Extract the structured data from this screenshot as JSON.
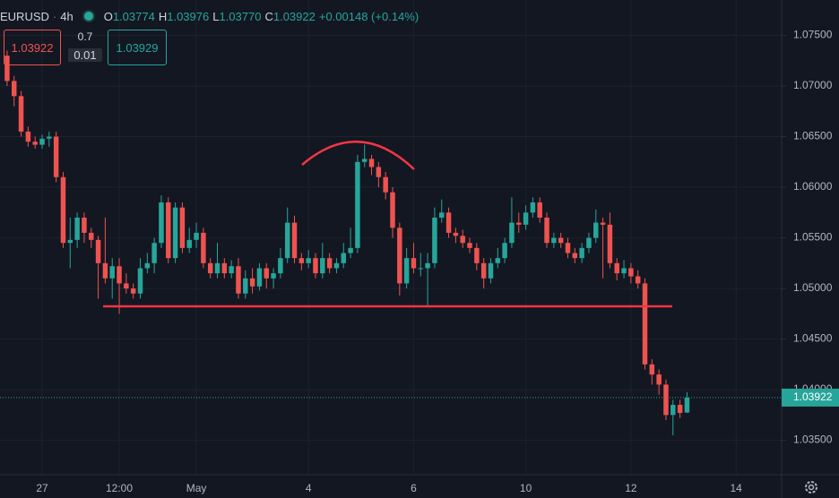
{
  "header": {
    "symbol": "EURUSD",
    "interval": "4h",
    "open_label": "O",
    "open": "1.03774",
    "high_label": "H",
    "high": "1.03976",
    "low_label": "L",
    "low": "1.03770",
    "close_label": "C",
    "close": "1.03922",
    "change": "+0.00148 (+0.14%)",
    "sell": "1.03922",
    "spread": "0.7",
    "quantity": "0.01",
    "buy": "1.03929"
  },
  "chart_data": {
    "type": "candlestick",
    "up_color": "#26a69a",
    "down_color": "#ef5350",
    "grid": true,
    "ylim": [
      1.0316,
      1.0785
    ],
    "yticks": [
      {
        "value": 1.035,
        "label": "1.03500"
      },
      {
        "value": 1.04,
        "label": "1.04000"
      },
      {
        "value": 1.045,
        "label": "1.04500"
      },
      {
        "value": 1.05,
        "label": "1.05000"
      },
      {
        "value": 1.055,
        "label": "1.05500"
      },
      {
        "value": 1.06,
        "label": "1.06000"
      },
      {
        "value": 1.065,
        "label": "1.06500"
      },
      {
        "value": 1.07,
        "label": "1.07000"
      },
      {
        "value": 1.075,
        "label": "1.07500"
      }
    ],
    "current_price": {
      "value": 1.03922,
      "label": "1.03922"
    },
    "categories": [
      null,
      null,
      null,
      null,
      null,
      "27",
      null,
      null,
      null,
      null,
      null,
      null,
      null,
      null,
      null,
      null,
      "12:00",
      null,
      null,
      null,
      null,
      null,
      null,
      null,
      null,
      null,
      null,
      "May",
      null,
      null,
      null,
      null,
      null,
      null,
      null,
      null,
      null,
      null,
      null,
      null,
      null,
      null,
      null,
      "4",
      null,
      null,
      null,
      null,
      null,
      null,
      null,
      null,
      null,
      null,
      null,
      null,
      null,
      null,
      "6",
      null,
      null,
      null,
      null,
      null,
      null,
      null,
      null,
      null,
      null,
      null,
      null,
      null,
      null,
      null,
      "10",
      null,
      null,
      null,
      null,
      null,
      null,
      null,
      null,
      null,
      null,
      null,
      null,
      null,
      null,
      "12",
      null,
      null,
      null,
      null,
      null,
      null,
      null,
      null,
      null,
      null,
      null,
      null,
      null,
      null,
      "14",
      null,
      null,
      null,
      null,
      null,
      null
    ],
    "open": [
      1.073,
      1.0705,
      1.069,
      1.0655,
      1.0645,
      1.0642,
      1.0648,
      1.065,
      1.061,
      1.0545,
      1.0548,
      1.057,
      1.0555,
      1.0548,
      1.0525,
      1.051,
      1.0522,
      1.0505,
      1.05,
      1.0495,
      1.052,
      1.0525,
      1.0545,
      1.0585,
      1.053,
      1.058,
      1.054,
      1.0548,
      1.0555,
      1.0525,
      1.0515,
      1.0525,
      1.0515,
      1.0522,
      1.0495,
      1.051,
      1.0502,
      1.052,
      1.051,
      1.0515,
      1.053,
      1.0565,
      1.053,
      1.0525,
      1.053,
      1.0515,
      1.053,
      1.052,
      1.0525,
      1.0535,
      1.054,
      1.0625,
      1.0628,
      1.062,
      1.061,
      1.0595,
      1.056,
      1.0505,
      1.053,
      1.052,
      1.052,
      1.0525,
      1.057,
      1.0575,
      1.0555,
      1.0552,
      1.0545,
      1.054,
      1.0525,
      1.051,
      1.0525,
      1.053,
      1.0545,
      1.0565,
      1.0563,
      1.0575,
      1.0585,
      1.057,
      1.0545,
      1.055,
      1.0545,
      1.0535,
      1.053,
      1.054,
      1.055,
      1.0565,
      1.0563,
      1.0525,
      1.0515,
      1.052,
      1.0512,
      1.0505,
      1.0425,
      1.0415,
      1.0405,
      1.0375,
      1.0385,
      1.03774,
      null,
      null,
      null,
      null,
      null,
      null,
      null,
      null,
      null,
      null,
      null,
      null,
      null
    ],
    "high": [
      1.0735,
      1.071,
      1.0695,
      1.066,
      1.065,
      1.0652,
      1.0655,
      1.0655,
      1.0615,
      1.057,
      1.0575,
      1.0575,
      1.056,
      1.0552,
      1.057,
      1.053,
      1.053,
      1.0515,
      1.0505,
      1.053,
      1.0535,
      1.055,
      1.0592,
      1.059,
      1.0585,
      1.0585,
      1.056,
      1.0565,
      1.056,
      1.053,
      1.0545,
      1.053,
      1.0528,
      1.053,
      1.0518,
      1.052,
      1.0525,
      1.0525,
      1.052,
      1.054,
      1.058,
      1.0572,
      1.0535,
      1.0538,
      1.0535,
      1.0545,
      1.0535,
      1.053,
      1.0545,
      1.056,
      1.0632,
      1.0642,
      1.0632,
      1.0625,
      1.0615,
      1.06,
      1.0565,
      1.054,
      1.0545,
      1.0535,
      1.0535,
      1.058,
      1.0588,
      1.058,
      1.056,
      1.0558,
      1.055,
      1.0545,
      1.053,
      1.053,
      1.054,
      1.055,
      1.059,
      1.0575,
      1.0582,
      1.059,
      1.059,
      1.0575,
      1.0555,
      1.0555,
      1.055,
      1.054,
      1.0545,
      1.0555,
      1.0578,
      1.057,
      1.0575,
      1.053,
      1.0528,
      1.0525,
      1.0518,
      1.051,
      1.043,
      1.042,
      1.041,
      1.039,
      1.039,
      1.03976,
      null,
      null,
      null,
      null,
      null,
      null,
      null,
      null,
      null,
      null,
      null,
      null,
      null
    ],
    "low": [
      1.07,
      1.068,
      1.065,
      1.064,
      1.0638,
      1.0638,
      1.064,
      1.0605,
      1.054,
      1.052,
      1.054,
      1.0545,
      1.054,
      1.049,
      1.0505,
      1.049,
      1.0475,
      1.0495,
      1.049,
      1.049,
      1.0515,
      1.0515,
      1.054,
      1.0525,
      1.0525,
      1.0535,
      1.0535,
      1.054,
      1.052,
      1.051,
      1.051,
      1.051,
      1.051,
      1.049,
      1.049,
      1.0495,
      1.0498,
      1.05,
      1.05,
      1.051,
      1.0525,
      1.0525,
      1.0518,
      1.052,
      1.051,
      1.051,
      1.0515,
      1.0515,
      1.052,
      1.053,
      1.0535,
      1.062,
      1.0612,
      1.06,
      1.0588,
      1.055,
      1.0493,
      1.05,
      1.0515,
      1.0512,
      1.0483,
      1.052,
      1.0565,
      1.055,
      1.0545,
      1.054,
      1.0535,
      1.0518,
      1.05,
      1.0505,
      1.052,
      1.0525,
      1.054,
      1.0555,
      1.0558,
      1.057,
      1.0565,
      1.054,
      1.054,
      1.054,
      1.053,
      1.0525,
      1.0525,
      1.0535,
      1.0545,
      1.051,
      1.052,
      1.0508,
      1.051,
      1.0505,
      1.05,
      1.042,
      1.0405,
      1.0395,
      1.037,
      1.0355,
      1.0372,
      1.0377,
      null,
      null,
      null,
      null,
      null,
      null,
      null,
      null,
      null,
      null,
      null,
      null,
      null
    ],
    "close": [
      1.0705,
      1.069,
      1.0655,
      1.0645,
      1.0642,
      1.0648,
      1.065,
      1.061,
      1.0545,
      1.0548,
      1.057,
      1.0555,
      1.0548,
      1.0525,
      1.051,
      1.0522,
      1.0505,
      1.05,
      1.0495,
      1.052,
      1.0525,
      1.0545,
      1.0585,
      1.053,
      1.058,
      1.054,
      1.0548,
      1.0555,
      1.0525,
      1.0515,
      1.0525,
      1.0515,
      1.0522,
      1.0495,
      1.051,
      1.0502,
      1.052,
      1.051,
      1.0515,
      1.053,
      1.0565,
      1.053,
      1.0525,
      1.053,
      1.0515,
      1.053,
      1.052,
      1.0525,
      1.0535,
      1.054,
      1.0625,
      1.0628,
      1.062,
      1.061,
      1.0595,
      1.056,
      1.0505,
      1.053,
      1.052,
      1.052,
      1.0525,
      1.057,
      1.0575,
      1.0555,
      1.0552,
      1.0545,
      1.054,
      1.0525,
      1.051,
      1.0525,
      1.053,
      1.0545,
      1.0565,
      1.0563,
      1.0575,
      1.0585,
      1.057,
      1.0545,
      1.055,
      1.0545,
      1.0535,
      1.053,
      1.054,
      1.055,
      1.0565,
      1.0563,
      1.0525,
      1.0515,
      1.052,
      1.0512,
      1.0505,
      1.0425,
      1.0415,
      1.0405,
      1.0375,
      1.0385,
      1.0377,
      1.03922,
      null,
      null,
      null,
      null,
      null,
      null,
      null,
      null,
      null,
      null,
      null,
      null,
      null
    ]
  }
}
